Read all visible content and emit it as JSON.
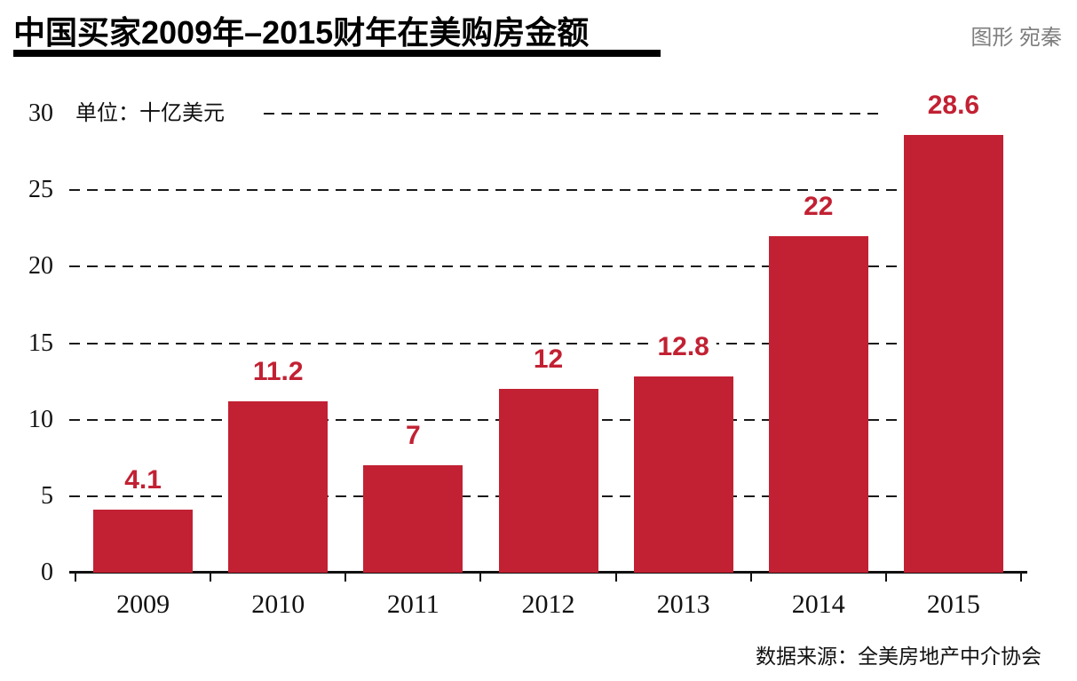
{
  "header": {
    "title": "中国买家2009年–2015财年在美购房金额",
    "credit": "图形 宛秦"
  },
  "chart_data": {
    "type": "bar",
    "title": "中国买家2009年–2015财年在美购房金额",
    "unit_label": "单位：十亿美元",
    "categories": [
      "2009",
      "2010",
      "2011",
      "2012",
      "2013",
      "2014",
      "2015"
    ],
    "values": [
      4.1,
      11.2,
      7,
      12,
      12.8,
      22,
      28.6
    ],
    "ylim": [
      0,
      30
    ],
    "yticks": [
      0,
      5,
      10,
      15,
      20,
      25,
      30
    ],
    "grid": "horizontal-dashed",
    "legend": "none",
    "xlabel": "",
    "ylabel": "单位：十亿美元",
    "bar_color": "#c22133",
    "data_label_color": "#c22133"
  },
  "footer": {
    "source": "数据来源：全美房地产中介协会"
  }
}
